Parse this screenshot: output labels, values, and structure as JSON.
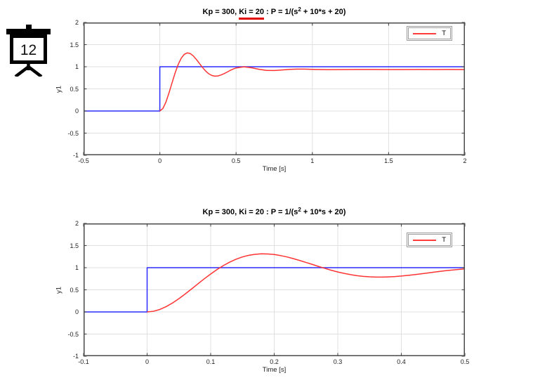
{
  "icon": {
    "number": "12"
  },
  "chart_data": [
    {
      "type": "line",
      "title": {
        "pre": "Kp = 300, ",
        "ki": "Ki = 20",
        "mid": " : P = 1/(s",
        "sup": "2",
        "post": " + 10*s + 20)",
        "ki_underlined": true,
        "underline_color": "#e30000"
      },
      "xlabel": "Time [s]",
      "ylabel": "y1",
      "xlim": [
        -0.5,
        2
      ],
      "ylim": [
        -1,
        2
      ],
      "xticks": [
        -0.5,
        0,
        0.5,
        1,
        1.5,
        2
      ],
      "xtick_labels": [
        "-0.5",
        "0",
        "0.5",
        "1",
        "1.5",
        "2"
      ],
      "yticks": [
        -1,
        -0.5,
        0,
        0.5,
        1,
        1.5,
        2
      ],
      "ytick_labels": [
        "-1",
        "-0.5",
        "0",
        "0.5",
        "1",
        "1.5",
        "2"
      ],
      "grid": true,
      "legend": {
        "label": "T",
        "color": "#ff3b3b",
        "position": "northeast"
      },
      "series": [
        {
          "name": "reference-step",
          "color": "#2b2bff",
          "x": [
            -0.5,
            0,
            0,
            2
          ],
          "y": [
            0,
            0,
            1,
            1
          ]
        },
        {
          "name": "T",
          "color": "#ff3333",
          "x": [
            0,
            0.02,
            0.04,
            0.06,
            0.08,
            0.1,
            0.12,
            0.14,
            0.16,
            0.18,
            0.2,
            0.22,
            0.24,
            0.26,
            0.28,
            0.3,
            0.32,
            0.34,
            0.36,
            0.38,
            0.4,
            0.42,
            0.44,
            0.46,
            0.48,
            0.5,
            0.55,
            0.6,
            0.65,
            0.7,
            0.75,
            0.8,
            0.85,
            0.9,
            0.95,
            1.0,
            1.1,
            1.2,
            1.3,
            1.4,
            1.5,
            1.6,
            1.7,
            1.8,
            1.9,
            2.0
          ],
          "y": [
            0,
            0.056,
            0.202,
            0.407,
            0.636,
            0.857,
            1.048,
            1.191,
            1.28,
            1.313,
            1.297,
            1.243,
            1.163,
            1.073,
            0.983,
            0.903,
            0.843,
            0.804,
            0.788,
            0.792,
            0.812,
            0.842,
            0.877,
            0.915,
            0.947,
            0.973,
            0.998,
            0.978,
            0.942,
            0.917,
            0.914,
            0.926,
            0.94,
            0.947,
            0.946,
            0.94,
            0.934,
            0.937,
            0.939,
            0.938,
            0.937,
            0.937,
            0.938,
            0.937,
            0.938,
            0.937
          ]
        }
      ]
    },
    {
      "type": "line",
      "title": {
        "pre": "Kp = 300, ",
        "ki": "Ki = 20",
        "mid": " : P = 1/(s",
        "sup": "2",
        "post": " + 10*s + 20)",
        "ki_underlined": false
      },
      "xlabel": "Time [s]",
      "ylabel": "y1",
      "xlim": [
        -0.1,
        0.5
      ],
      "ylim": [
        -1,
        2
      ],
      "xticks": [
        -0.1,
        0,
        0.1,
        0.2,
        0.3,
        0.4,
        0.5
      ],
      "xtick_labels": [
        "-0.1",
        "0",
        "0.1",
        "0.2",
        "0.3",
        "0.4",
        "0.5"
      ],
      "yticks": [
        -1,
        -0.5,
        0,
        0.5,
        1,
        1.5,
        2
      ],
      "ytick_labels": [
        "-1",
        "-0.5",
        "0",
        "0.5",
        "1",
        "1.5",
        "2"
      ],
      "grid": true,
      "legend": {
        "label": "T",
        "color": "#ff3b3b",
        "position": "northeast"
      },
      "series": [
        {
          "name": "reference-step",
          "color": "#2b2bff",
          "x": [
            -0.1,
            0,
            0,
            0.5
          ],
          "y": [
            0,
            0,
            1,
            1
          ]
        },
        {
          "name": "T",
          "color": "#ff3333",
          "x": [
            0,
            0.01,
            0.02,
            0.03,
            0.04,
            0.05,
            0.06,
            0.07,
            0.08,
            0.09,
            0.1,
            0.11,
            0.12,
            0.13,
            0.14,
            0.15,
            0.16,
            0.17,
            0.18,
            0.19,
            0.2,
            0.21,
            0.22,
            0.23,
            0.24,
            0.25,
            0.26,
            0.27,
            0.28,
            0.29,
            0.3,
            0.31,
            0.32,
            0.33,
            0.34,
            0.35,
            0.36,
            0.37,
            0.38,
            0.39,
            0.4,
            0.41,
            0.42,
            0.43,
            0.44,
            0.45,
            0.46,
            0.47,
            0.48,
            0.49,
            0.5
          ],
          "y": [
            0,
            0.015,
            0.056,
            0.12,
            0.202,
            0.3,
            0.407,
            0.52,
            0.636,
            0.749,
            0.857,
            0.958,
            1.048,
            1.126,
            1.191,
            1.243,
            1.28,
            1.302,
            1.313,
            1.31,
            1.297,
            1.273,
            1.243,
            1.204,
            1.163,
            1.118,
            1.073,
            1.026,
            0.983,
            0.941,
            0.903,
            0.871,
            0.843,
            0.82,
            0.804,
            0.793,
            0.788,
            0.787,
            0.792,
            0.8,
            0.812,
            0.826,
            0.842,
            0.86,
            0.877,
            0.897,
            0.915,
            0.932,
            0.947,
            0.961,
            0.973
          ]
        }
      ]
    }
  ]
}
